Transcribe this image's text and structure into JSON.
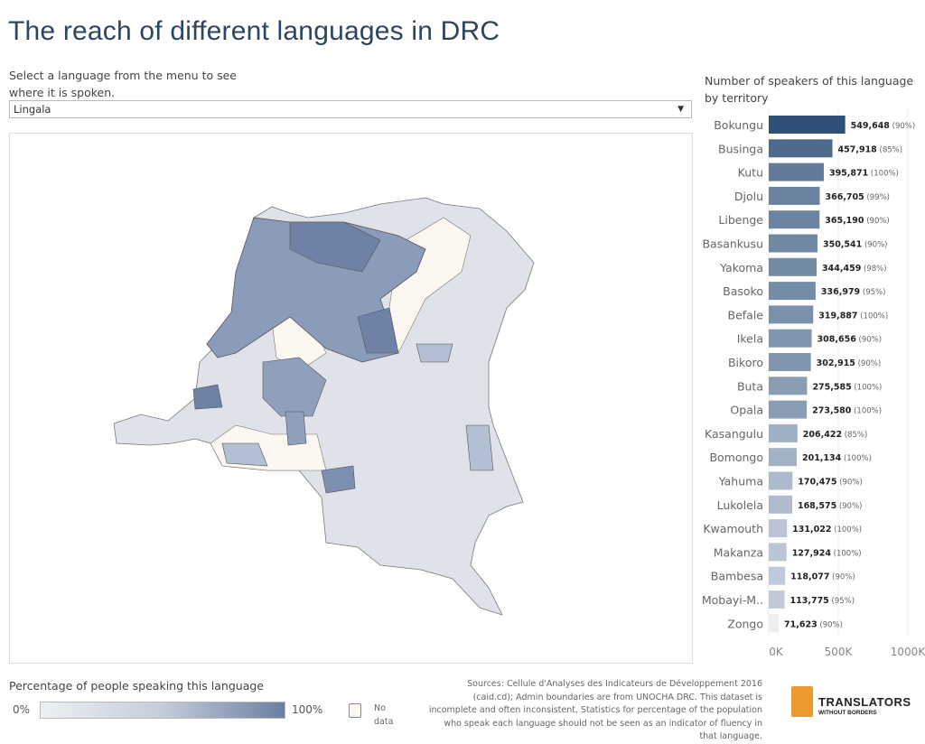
{
  "title": "The reach of different languages in DRC",
  "prompt": "Select a language from the menu to see where it is spoken.",
  "dropdown": {
    "selected": "Lingala"
  },
  "legend": {
    "title": "Percentage of people speaking this language",
    "min_label": "0%",
    "max_label": "100%",
    "no_data_label": "No data",
    "colors": {
      "low": "#eef0f3",
      "high": "#6a7fa2",
      "no_data": "#fdf7f2"
    }
  },
  "sources": "Sources: Cellule d'Analyses des Indicateurs de Développement 2016 (caid.cd); Admin boundaries are from UNOCHA DRC. This dataset is incomplete and often inconsistent. Statistics for percentage of the population who speak each language should not be seen as an indicator of fluency in that language.",
  "logo": {
    "name": "TRANSLATORS",
    "sub": "WITHOUT BORDERS"
  },
  "chart_data": {
    "type": "bar",
    "orientation": "horizontal",
    "title": "Number of speakers of this language by territory",
    "categories": [
      "Bokungu",
      "Businga",
      "Kutu",
      "Djolu",
      "Libenge",
      "Basankusu",
      "Yakoma",
      "Basoko",
      "Befale",
      "Ikela",
      "Bikoro",
      "Buta",
      "Opala",
      "Kasangulu",
      "Bomongo",
      "Yahuma",
      "Lukolela",
      "Kwamouth",
      "Makanza",
      "Bambesa",
      "Mobayi-M..",
      "Zongo"
    ],
    "values": [
      549648,
      457918,
      395871,
      366705,
      365190,
      350541,
      344459,
      336979,
      319887,
      308656,
      302915,
      275585,
      273580,
      206422,
      201134,
      170475,
      168575,
      131022,
      127924,
      118077,
      113775,
      71623
    ],
    "value_labels": [
      "549,648",
      "457,918",
      "395,871",
      "366,705",
      "365,190",
      "350,541",
      "344,459",
      "336,979",
      "319,887",
      "308,656",
      "302,915",
      "275,585",
      "273,580",
      "206,422",
      "201,134",
      "170,475",
      "168,575",
      "131,022",
      "127,924",
      "118,077",
      "113,775",
      "71,623"
    ],
    "percent_labels": [
      "(90%)",
      "(85%)",
      "(100%)",
      "(99%)",
      "(90%)",
      "(90%)",
      "(98%)",
      "(95%)",
      "(100%)",
      "(90%)",
      "(90%)",
      "(100%)",
      "(100%)",
      "(85%)",
      "(100%)",
      "(90%)",
      "(90%)",
      "(100%)",
      "(100%)",
      "(90%)",
      "(95%)",
      "(90%)"
    ],
    "xlim": [
      0,
      1000000
    ],
    "x_ticks": [
      "0K",
      "500K",
      "1000K"
    ],
    "grid": true,
    "colors": {
      "dark": "#2f5077",
      "light": "#eeeeee"
    }
  }
}
